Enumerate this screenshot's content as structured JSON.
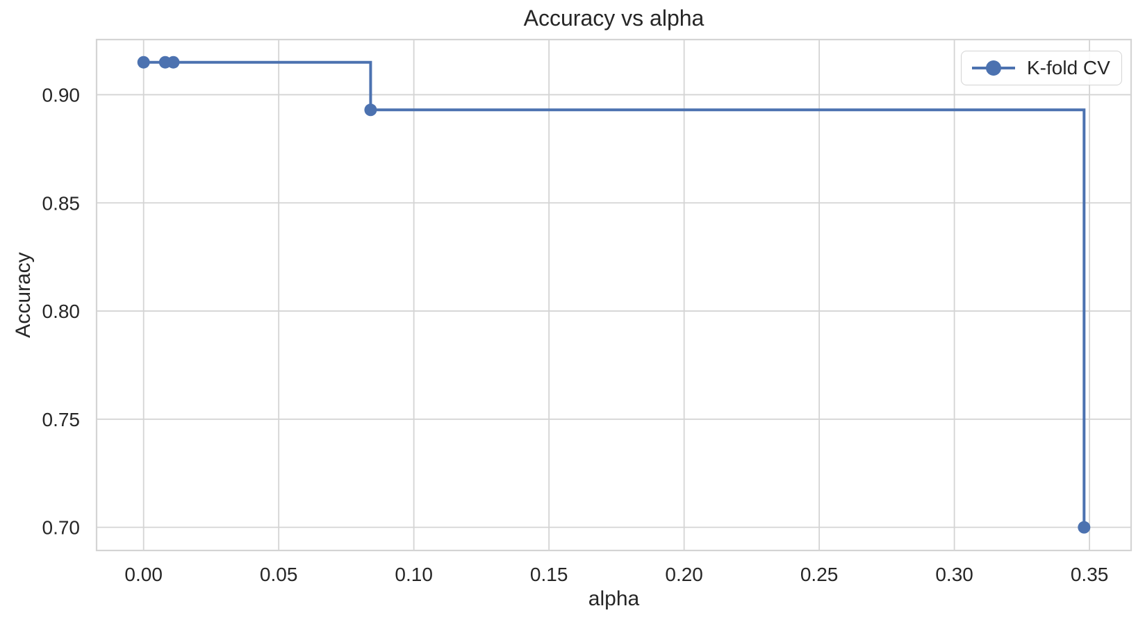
{
  "chart_data": {
    "type": "line",
    "title": "Accuracy vs alpha",
    "xlabel": "alpha",
    "ylabel": "Accuracy",
    "drawstyle": "steps-post",
    "x": [
      0.0,
      0.008,
      0.011,
      0.084,
      0.348
    ],
    "series": [
      {
        "name": "K-fold CV",
        "values": [
          0.915,
          0.915,
          0.915,
          0.893,
          0.7
        ]
      }
    ],
    "xlim": [
      -0.0174,
      0.3654
    ],
    "ylim": [
      0.6893,
      0.9255
    ],
    "xticks": [
      0.0,
      0.05,
      0.1,
      0.15,
      0.2,
      0.25,
      0.3,
      0.35
    ],
    "yticks": [
      0.7,
      0.75,
      0.8,
      0.85,
      0.9
    ],
    "xtick_labels": [
      "0.00",
      "0.05",
      "0.10",
      "0.15",
      "0.20",
      "0.25",
      "0.30",
      "0.35"
    ],
    "ytick_labels": [
      "0.70",
      "0.75",
      "0.80",
      "0.85",
      "0.90"
    ],
    "grid": true,
    "legend_position": "upper right",
    "legend_marker": "circle-on-line-icon",
    "colors": {
      "line": "#4C72B0",
      "grid": "#d4d4d4",
      "spine": "#d4d4d4",
      "text": "#262626",
      "background": "#ffffff"
    }
  }
}
